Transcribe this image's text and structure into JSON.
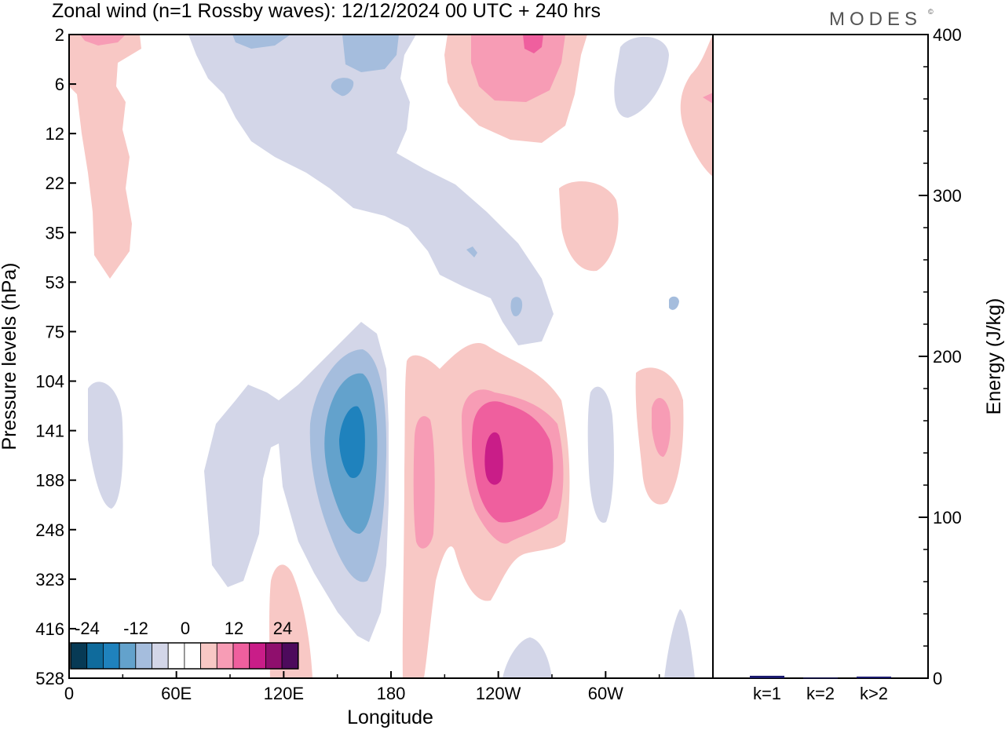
{
  "title": "Zonal wind (n=1 Rossby waves):  12/12/2024  00 UTC  + 240 hrs",
  "brand": "MODES",
  "brand_mark": "©",
  "chart_data": [
    {
      "type": "heatmap",
      "xlabel": "Longitude",
      "ylabel": "Pressure levels (hPa)",
      "x_tick_labels": [
        "0",
        "60E",
        "120E",
        "180",
        "120W",
        "60W"
      ],
      "y_tick_labels": [
        "2",
        "6",
        "12",
        "22",
        "35",
        "53",
        "75",
        "104",
        "141",
        "188",
        "248",
        "323",
        "416",
        "528"
      ],
      "colorbar": {
        "tick_labels": [
          "-24",
          "-12",
          "0",
          "12",
          "24"
        ],
        "colors": [
          "#073a55",
          "#0f6b9c",
          "#1f82bd",
          "#63a2cc",
          "#a5bddd",
          "#d3d6e8",
          "#ffffff",
          "#ffffff",
          "#f8c8c5",
          "#f79cb5",
          "#ef5f9e",
          "#c91d88",
          "#8f0f6d",
          "#4d0a5c"
        ]
      },
      "contour_levels_shown": {
        "neg_light": "#d3d6e8",
        "neg_mid": "#a5bddd",
        "neg_strong": "#63a2cc",
        "neg_core": "#1f82bd",
        "pos_light": "#f8c8c5",
        "pos_mid": "#f79cb5",
        "pos_strong": "#ef5f9e",
        "pos_core": "#c91d88"
      }
    },
    {
      "type": "bar",
      "categories": [
        "k=1",
        "k=2",
        "k>2"
      ],
      "values": [
        1.5,
        0.3,
        1.0
      ],
      "ylabel": "Energy (J/kg)",
      "ylim": [
        0,
        400
      ],
      "y_tick_labels": [
        "0",
        "100",
        "200",
        "300",
        "400"
      ],
      "bar_color": "#1a1a6e"
    }
  ]
}
